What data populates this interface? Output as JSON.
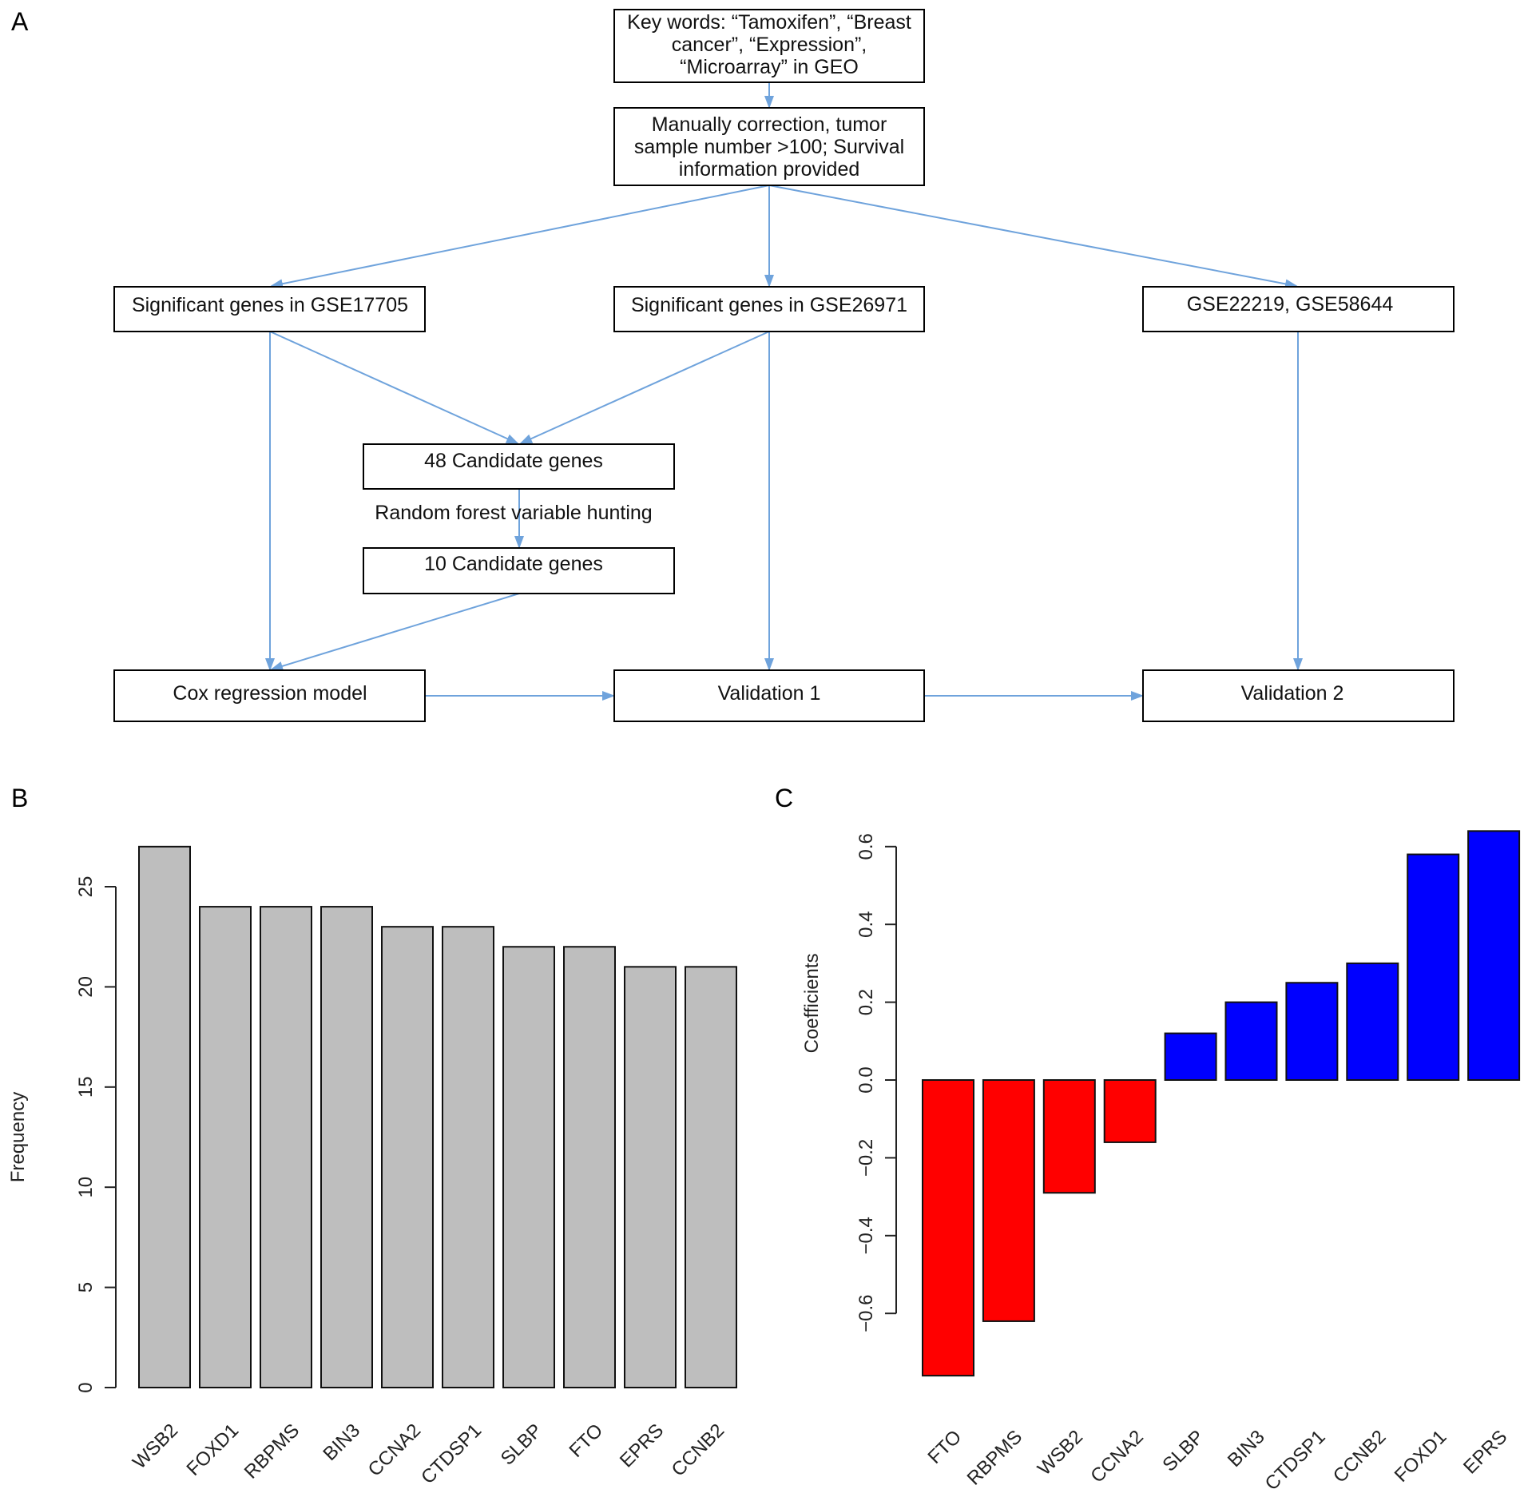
{
  "panels": {
    "a": "A",
    "b": "B",
    "c": "C"
  },
  "flow": {
    "keywords": [
      "Key words: “Tamoxifen”, “Breast",
      "cancer”, “Expression”,",
      "“Microarray” in GEO"
    ],
    "correction": [
      "Manually correction, tumor",
      "sample number >100; Survival",
      "information provided"
    ],
    "gse17705": "Significant genes in GSE17705",
    "gse26971": "Significant genes in GSE26971",
    "gse_val": "GSE22219, GSE58644",
    "cand48": "48 Candidate genes",
    "rf": "Random forest variable hunting",
    "cand10": "10 Candidate genes",
    "cox": "Cox regression model",
    "val1": "Validation 1",
    "val2": "Validation 2",
    "arrow_color": "#6fa3dc"
  },
  "chart_data": [
    {
      "type": "bar",
      "title": "",
      "xlabel": "",
      "ylabel": "Frequency",
      "ylim": [
        0,
        27
      ],
      "yticks": [
        0,
        5,
        10,
        15,
        20,
        25
      ],
      "categories": [
        "WSB2",
        "FOXD1",
        "RBPMS",
        "BIN3",
        "CCNA2",
        "CTDSP1",
        "SLBP",
        "FTO",
        "EPRS",
        "CCNB2"
      ],
      "values": [
        27,
        24,
        24,
        24,
        23,
        23,
        22,
        22,
        21,
        21
      ],
      "color": "#bebebe"
    },
    {
      "type": "bar",
      "title": "",
      "xlabel": "",
      "ylabel": "Coefficients",
      "ylim": [
        -0.76,
        0.64
      ],
      "yticks": [
        -0.6,
        -0.4,
        -0.2,
        0.0,
        0.2,
        0.4,
        0.6
      ],
      "categories": [
        "FTO",
        "RBPMS",
        "WSB2",
        "CCNA2",
        "SLBP",
        "BIN3",
        "CTDSP1",
        "CCNB2",
        "FOXD1",
        "EPRS"
      ],
      "values": [
        -0.76,
        -0.62,
        -0.29,
        -0.16,
        0.12,
        0.2,
        0.25,
        0.3,
        0.58,
        0.64
      ],
      "neg_color": "#ff0000",
      "pos_color": "#0000ff"
    }
  ]
}
